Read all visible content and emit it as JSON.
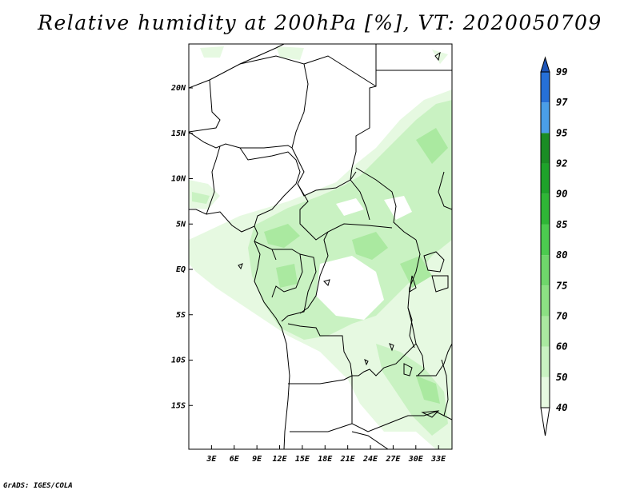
{
  "title": "Relative humidity at 200hPa [%], VT: 2020050709",
  "credit": "GrADS: IGES/COLA",
  "map": {
    "y_ticks": [
      {
        "label": "20N",
        "lat": 20
      },
      {
        "label": "15N",
        "lat": 15
      },
      {
        "label": "10N",
        "lat": 10
      },
      {
        "label": "5N",
        "lat": 5
      },
      {
        "label": "EQ",
        "lat": 0
      },
      {
        "label": "5S",
        "lat": -5
      },
      {
        "label": "10S",
        "lat": -10
      },
      {
        "label": "15S",
        "lat": -15
      }
    ],
    "x_ticks": [
      {
        "label": "3E",
        "lon": 3
      },
      {
        "label": "6E",
        "lon": 6
      },
      {
        "label": "9E",
        "lon": 9
      },
      {
        "label": "12E",
        "lon": 12
      },
      {
        "label": "15E",
        "lon": 15
      },
      {
        "label": "18E",
        "lon": 18
      },
      {
        "label": "21E",
        "lon": 21
      },
      {
        "label": "24E",
        "lon": 24
      },
      {
        "label": "27E",
        "lon": 27
      },
      {
        "label": "30E",
        "lon": 30
      },
      {
        "label": "33E",
        "lon": 33
      }
    ]
  },
  "colorbar": {
    "levels": [
      "40",
      "50",
      "60",
      "70",
      "75",
      "80",
      "85",
      "90",
      "92",
      "95",
      "97",
      "99"
    ],
    "colors": [
      "#ffffff",
      "#e6f9e1",
      "#c9f2c2",
      "#aae9a0",
      "#8ce083",
      "#6fd66b",
      "#4ccb4f",
      "#2fb636",
      "#1ea22a",
      "#1a8c24",
      "#4a9ee8",
      "#2670d8",
      "#1e55b8"
    ]
  },
  "legend_colors": {
    "lightest_green": "#e6f9e1",
    "light_green": "#c9f2c2",
    "medium_green": "#aae9a0"
  }
}
